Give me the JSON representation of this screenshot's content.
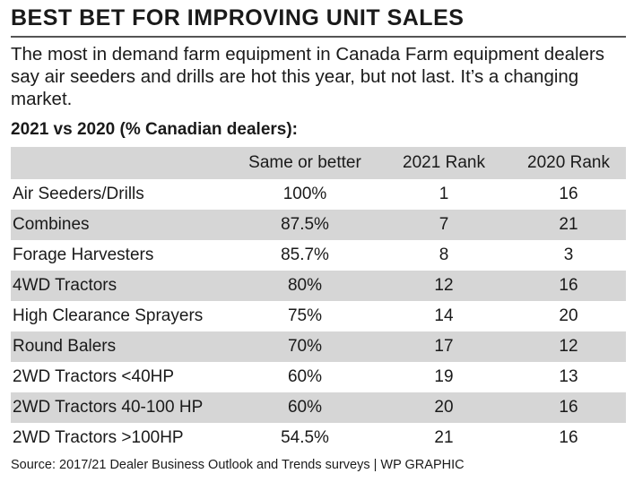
{
  "title": "BEST BET FOR IMPROVING UNIT SALES",
  "subtitle": "The most in demand farm equipment in Canada  Farm equipment dealers say air seeders and drills are hot this year, but not last. It’s a changing market.",
  "section_title": "2021 vs 2020 (% Canadian dealers):",
  "source": "Source: 2017/21 Dealer Business Outlook and Trends surveys | WP GRAPHIC",
  "chart_data": {
    "type": "table",
    "title": "BEST BET FOR IMPROVING UNIT SALES",
    "columns": [
      "",
      "Same or better",
      "2021 Rank",
      "2020 Rank"
    ],
    "rows": [
      [
        "Air Seeders/Drills",
        "100%",
        "1",
        "16"
      ],
      [
        "Combines",
        "87.5%",
        "7",
        "21"
      ],
      [
        "Forage Harvesters",
        "85.7%",
        "8",
        "3"
      ],
      [
        "4WD Tractors",
        "80%",
        "12",
        "16"
      ],
      [
        "High Clearance Sprayers",
        "75%",
        "14",
        "20"
      ],
      [
        "Round Balers",
        "70%",
        "17",
        "12"
      ],
      [
        "2WD Tractors <40HP",
        "60%",
        "19",
        "13"
      ],
      [
        "2WD Tractors 40-100 HP",
        "60%",
        "20",
        "16"
      ],
      [
        "2WD Tractors >100HP",
        "54.5%",
        "21",
        "16"
      ]
    ]
  },
  "colors": {
    "stripe": "#d6d6d6",
    "text": "#1a1a1a",
    "rule": "#555555"
  }
}
